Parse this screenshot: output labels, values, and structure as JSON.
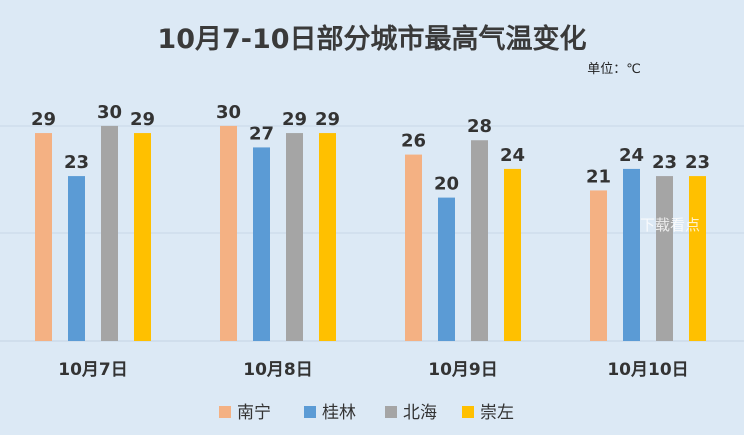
{
  "chart_data": {
    "type": "bar",
    "title": "10月7-10日部分城市最高气温变化",
    "unit": "单位：℃",
    "categories": [
      "10月7日",
      "10月8日",
      "10月9日",
      "10月10日"
    ],
    "series": [
      {
        "name": "南宁",
        "color": "#f4b183",
        "values": [
          29,
          30,
          26,
          21
        ]
      },
      {
        "name": "桂林",
        "color": "#5b9bd5",
        "values": [
          23,
          27,
          20,
          24
        ]
      },
      {
        "name": "北海",
        "color": "#a5a5a5",
        "values": [
          30,
          29,
          28,
          23
        ]
      },
      {
        "name": "崇左",
        "color": "#ffc000",
        "values": [
          29,
          29,
          24,
          23
        ]
      }
    ],
    "ylim": [
      0,
      30
    ],
    "grid": true,
    "legend": "bottom"
  },
  "watermark": "下载看点"
}
